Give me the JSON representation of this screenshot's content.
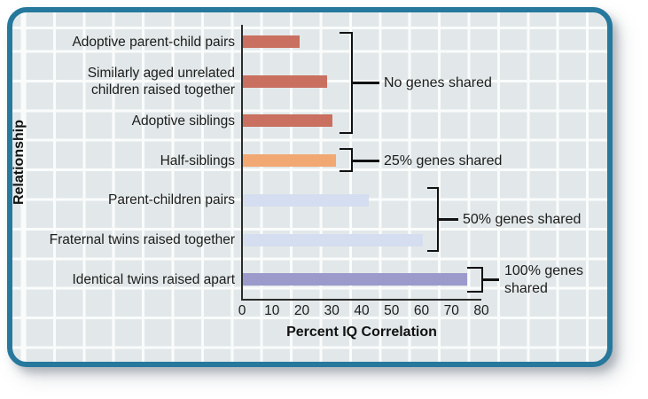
{
  "figure": {
    "background_color": "#E2E8E9",
    "grid_line_color": "#FAFCFC",
    "frame_border_color": "#26789C",
    "axis_color": "#2b2b2b"
  },
  "chart_data": {
    "type": "bar",
    "orientation": "horizontal",
    "title": "",
    "xlabel": "Percent IQ Correlation",
    "ylabel": "Relationship",
    "xlim": [
      0,
      80
    ],
    "xticks": [
      0,
      10,
      20,
      30,
      40,
      50,
      60,
      70,
      80
    ],
    "grid": true,
    "categories": [
      "Adoptive parent-child pairs",
      "Similarly aged unrelated children raised together",
      "Adoptive siblings",
      "Half-siblings",
      "Parent-children pairs",
      "Fraternal twins raised together",
      "Identical twins raised apart"
    ],
    "values": [
      19,
      28,
      30,
      31,
      42,
      60,
      75
    ],
    "bar_colors": [
      "#C97060",
      "#C97060",
      "#C97060",
      "#F2A873",
      "#D5DDF0",
      "#D5DDF0",
      "#9B9ACA"
    ],
    "annotations": [
      {
        "label": "No genes shared",
        "rows": [
          0,
          2
        ]
      },
      {
        "label": "25% genes shared",
        "rows": [
          3,
          3
        ]
      },
      {
        "label": "50% genes shared",
        "rows": [
          4,
          5
        ]
      },
      {
        "label": "100% genes shared",
        "rows": [
          6,
          6
        ]
      }
    ]
  }
}
